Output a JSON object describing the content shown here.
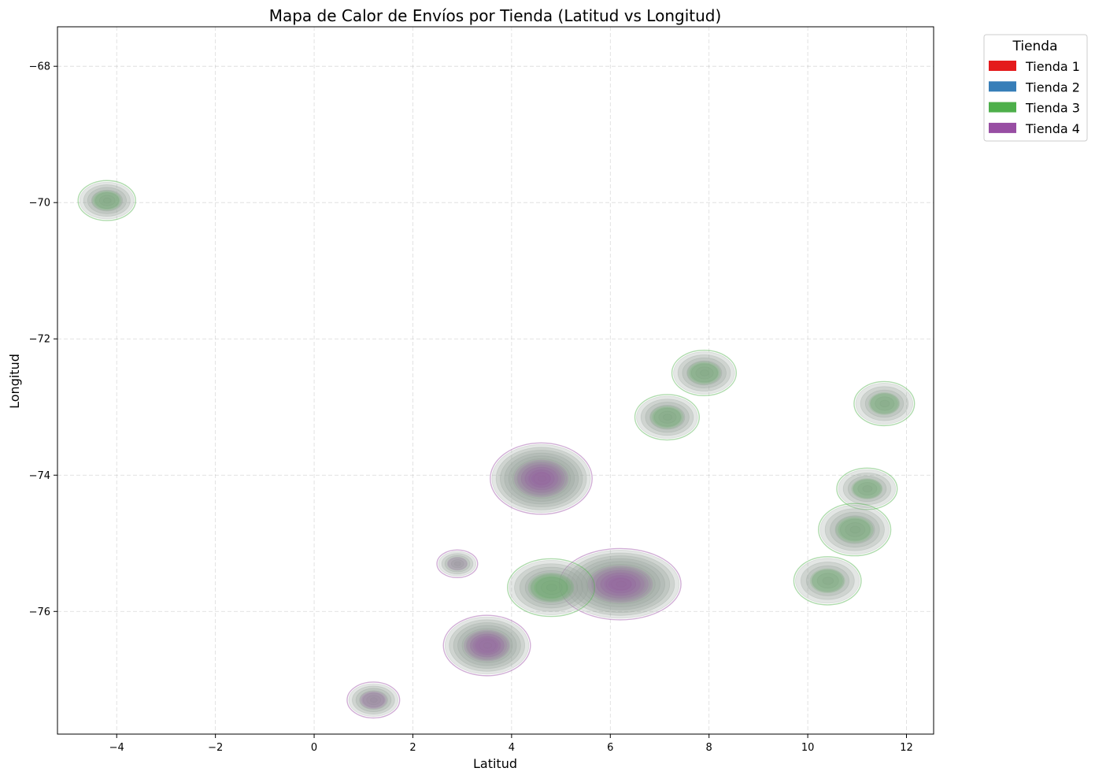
{
  "chart_data": {
    "type": "heatmap",
    "subtype": "kde-contour",
    "title": "Mapa de Calor de Envíos por Tienda (Latitud vs Longitud)",
    "xlabel": "Latitud",
    "ylabel": "Longitud",
    "xlim": [
      -5.2,
      12.55
    ],
    "ylim": [
      -77.8,
      -67.42
    ],
    "xticks": [
      -4,
      -2,
      0,
      2,
      4,
      6,
      8,
      10,
      12
    ],
    "yticks": [
      -68,
      -70,
      -72,
      -74,
      -76
    ],
    "grid": true,
    "legend": {
      "title": "Tienda",
      "placement": "outside-top-right",
      "entries": [
        {
          "label": "Tienda 1",
          "color": "#e41a1c"
        },
        {
          "label": "Tienda 2",
          "color": "#377eb8"
        },
        {
          "label": "Tienda 3",
          "color": "#4daf4a"
        },
        {
          "label": "Tienda 4",
          "color": "#984ea3"
        }
      ]
    },
    "clusters": [
      {
        "x": -4.2,
        "y": -69.97,
        "rx": 0.55,
        "ry": 0.27,
        "density": 0.35,
        "top": "#4daf4a"
      },
      {
        "x": 4.6,
        "y": -74.05,
        "rx": 1.0,
        "ry": 0.5,
        "density": 1.0,
        "top": "#984ea3"
      },
      {
        "x": 6.2,
        "y": -75.6,
        "rx": 1.2,
        "ry": 0.5,
        "density": 0.95,
        "top": "#984ea3"
      },
      {
        "x": 4.8,
        "y": -75.65,
        "rx": 0.85,
        "ry": 0.4,
        "density": 0.55,
        "top": "#4daf4a"
      },
      {
        "x": 3.5,
        "y": -76.5,
        "rx": 0.85,
        "ry": 0.42,
        "density": 0.75,
        "top": "#984ea3"
      },
      {
        "x": 1.2,
        "y": -77.3,
        "rx": 0.5,
        "ry": 0.24,
        "density": 0.35,
        "top": "#984ea3"
      },
      {
        "x": 2.9,
        "y": -75.3,
        "rx": 0.38,
        "ry": 0.18,
        "density": 0.2,
        "top": "#984ea3"
      },
      {
        "x": 7.9,
        "y": -72.5,
        "rx": 0.62,
        "ry": 0.31,
        "density": 0.35,
        "top": "#4daf4a"
      },
      {
        "x": 7.15,
        "y": -73.15,
        "rx": 0.62,
        "ry": 0.31,
        "density": 0.35,
        "top": "#4daf4a"
      },
      {
        "x": 11.55,
        "y": -72.95,
        "rx": 0.58,
        "ry": 0.3,
        "density": 0.3,
        "top": "#4daf4a"
      },
      {
        "x": 11.2,
        "y": -74.2,
        "rx": 0.58,
        "ry": 0.28,
        "density": 0.3,
        "top": "#4daf4a"
      },
      {
        "x": 10.95,
        "y": -74.8,
        "rx": 0.7,
        "ry": 0.36,
        "density": 0.35,
        "top": "#4daf4a"
      },
      {
        "x": 10.4,
        "y": -75.55,
        "rx": 0.65,
        "ry": 0.33,
        "density": 0.3,
        "top": "#4daf4a"
      }
    ]
  }
}
